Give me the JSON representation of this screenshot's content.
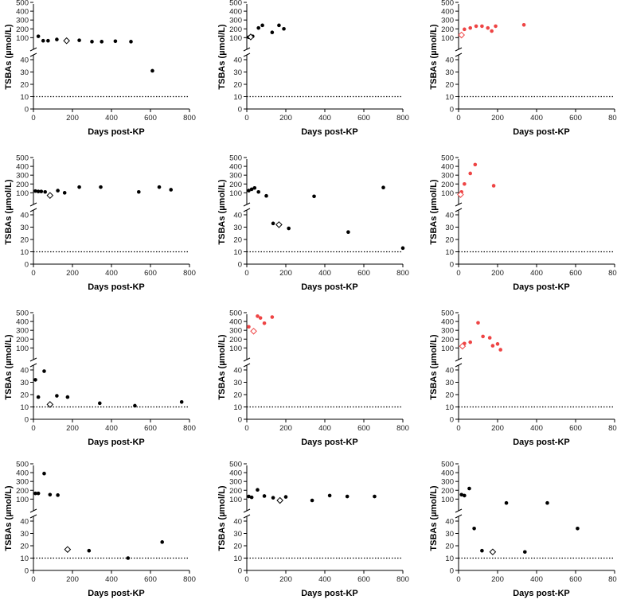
{
  "figure": {
    "ylabel": "TSBAs (µmol/L)",
    "xlabel": "Days post-KP"
  },
  "chart_data": [
    {
      "type": "scatter",
      "panel": "row1-col1",
      "upper": true,
      "x": [
        25,
        50,
        75,
        120,
        235,
        300,
        350,
        420,
        500,
        610
      ],
      "y": [
        115,
        65,
        65,
        80,
        70,
        55,
        55,
        60,
        55,
        31
      ],
      "open": [
        {
          "x": 170,
          "y": 65
        }
      ],
      "normal_threshold": 10,
      "xlim": [
        0,
        800
      ],
      "ylim_lower": [
        0,
        40
      ],
      "ylim_upper": [
        40,
        500
      ],
      "point_color": "#000000",
      "open_color": "#000000"
    },
    {
      "type": "scatter",
      "panel": "row1-col2",
      "upper": true,
      "x": [
        10,
        30,
        60,
        80,
        130,
        165,
        190
      ],
      "y": [
        105,
        115,
        210,
        240,
        160,
        240,
        200
      ],
      "open": [
        {
          "x": 20,
          "y": 108
        }
      ],
      "normal_threshold": 10,
      "xlim": [
        0,
        800
      ],
      "ylim_lower": [
        0,
        40
      ],
      "ylim_upper": [
        40,
        500
      ],
      "point_color": "#000000",
      "open_color": "#000000"
    },
    {
      "type": "scatter",
      "panel": "row1-col3",
      "upper": true,
      "x": [
        30,
        60,
        90,
        120,
        150,
        170,
        190,
        335
      ],
      "y": [
        195,
        210,
        230,
        230,
        210,
        175,
        230,
        245
      ],
      "open": [
        {
          "x": 15,
          "y": 130
        }
      ],
      "normal_threshold": 10,
      "xlim": [
        0,
        800
      ],
      "ylim_lower": [
        0,
        40
      ],
      "ylim_upper": [
        40,
        500
      ],
      "point_color": "#ee4444",
      "open_color": "#ee4444"
    },
    {
      "type": "scatter",
      "panel": "row2-col1",
      "upper": true,
      "x": [
        10,
        25,
        40,
        60,
        125,
        160,
        235,
        345,
        540,
        645,
        705
      ],
      "y": [
        120,
        115,
        115,
        110,
        125,
        100,
        165,
        165,
        110,
        165,
        135
      ],
      "open": [
        {
          "x": 85,
          "y": 70
        }
      ],
      "normal_threshold": 10,
      "xlim": [
        0,
        800
      ],
      "ylim_lower": [
        0,
        40
      ],
      "ylim_upper": [
        40,
        500
      ],
      "point_color": "#000000",
      "open_color": "#000000"
    },
    {
      "type": "scatter",
      "panel": "row2-col2",
      "upper": true,
      "x": [
        10,
        25,
        40,
        60,
        100,
        135,
        215,
        345,
        520,
        700,
        800
      ],
      "y": [
        125,
        140,
        155,
        110,
        65,
        33,
        29,
        60,
        26,
        160,
        13
      ],
      "open": [
        {
          "x": 165,
          "y": 32
        }
      ],
      "normal_threshold": 10,
      "xlim": [
        0,
        800
      ],
      "ylim_lower": [
        0,
        40
      ],
      "ylim_upper": [
        40,
        500
      ],
      "point_color": "#000000",
      "open_color": "#000000"
    },
    {
      "type": "scatter",
      "panel": "row2-col3",
      "upper": true,
      "x": [
        15,
        30,
        60,
        85,
        180
      ],
      "y": [
        110,
        200,
        320,
        420,
        180
      ],
      "open": [
        {
          "x": 10,
          "y": 80
        }
      ],
      "normal_threshold": 10,
      "xlim": [
        0,
        800
      ],
      "ylim_lower": [
        0,
        40
      ],
      "ylim_upper": [
        40,
        500
      ],
      "point_color": "#ee4444",
      "open_color": "#ee4444"
    },
    {
      "type": "scatter",
      "panel": "row3-col1",
      "upper": true,
      "x": [
        10,
        25,
        55,
        120,
        175,
        340,
        520,
        760
      ],
      "y": [
        32,
        18,
        39,
        19,
        18,
        13,
        11,
        14
      ],
      "open": [
        {
          "x": 85,
          "y": 12
        }
      ],
      "normal_threshold": 10,
      "xlim": [
        0,
        800
      ],
      "ylim_lower": [
        0,
        40
      ],
      "ylim_upper": [
        40,
        500
      ],
      "point_color": "#000000",
      "open_color": "#000000"
    },
    {
      "type": "scatter",
      "panel": "row3-col2",
      "upper": true,
      "x": [
        10,
        55,
        70,
        90,
        130
      ],
      "y": [
        340,
        460,
        440,
        380,
        450
      ],
      "open": [
        {
          "x": 35,
          "y": 290
        }
      ],
      "normal_threshold": 10,
      "xlim": [
        0,
        800
      ],
      "ylim_lower": [
        0,
        40
      ],
      "ylim_upper": [
        40,
        500
      ],
      "point_color": "#ee4444",
      "open_color": "#ee4444"
    },
    {
      "type": "scatter",
      "panel": "row3-col3",
      "upper": true,
      "x": [
        30,
        60,
        100,
        125,
        160,
        175,
        200,
        215
      ],
      "y": [
        150,
        165,
        385,
        230,
        215,
        125,
        145,
        80
      ],
      "open": [
        {
          "x": 20,
          "y": 120
        }
      ],
      "normal_threshold": 10,
      "xlim": [
        0,
        800
      ],
      "ylim_lower": [
        0,
        40
      ],
      "ylim_upper": [
        40,
        500
      ],
      "point_color": "#ee4444",
      "open_color": "#ee4444"
    },
    {
      "type": "scatter",
      "panel": "row4-col1",
      "upper": true,
      "x": [
        10,
        25,
        55,
        85,
        125,
        285,
        485,
        660
      ],
      "y": [
        165,
        165,
        390,
        150,
        145,
        16,
        10,
        23
      ],
      "open": [
        {
          "x": 175,
          "y": 17
        }
      ],
      "normal_threshold": 10,
      "xlim": [
        0,
        800
      ],
      "ylim_lower": [
        0,
        40
      ],
      "ylim_upper": [
        40,
        500
      ],
      "point_color": "#000000",
      "open_color": "#000000"
    },
    {
      "type": "scatter",
      "panel": "row4-col2",
      "upper": true,
      "x": [
        10,
        25,
        55,
        90,
        135,
        200,
        335,
        425,
        515,
        655
      ],
      "y": [
        130,
        120,
        205,
        135,
        115,
        125,
        85,
        140,
        130,
        130
      ],
      "open": [
        {
          "x": 170,
          "y": 85
        }
      ],
      "normal_threshold": 10,
      "xlim": [
        0,
        800
      ],
      "ylim_lower": [
        0,
        40
      ],
      "ylim_upper": [
        40,
        500
      ],
      "point_color": "#000000",
      "open_color": "#000000"
    },
    {
      "type": "scatter",
      "panel": "row4-col3",
      "upper": true,
      "x": [
        15,
        30,
        55,
        80,
        120,
        245,
        340,
        455,
        610
      ],
      "y": [
        150,
        140,
        220,
        34,
        16,
        56,
        15,
        56,
        34
      ],
      "open": [
        {
          "x": 175,
          "y": 15
        }
      ],
      "normal_threshold": 10,
      "xlim": [
        0,
        800
      ],
      "ylim_lower": [
        0,
        40
      ],
      "ylim_upper": [
        40,
        500
      ],
      "point_color": "#000000",
      "open_color": "#000000"
    }
  ],
  "axis": {
    "xticks": [
      "0",
      "200",
      "400",
      "600",
      "800"
    ],
    "yticks_upper": [
      "500",
      "400",
      "300",
      "200",
      "100"
    ],
    "yticks_lower": [
      "40",
      "30",
      "20",
      "10",
      "0"
    ]
  }
}
